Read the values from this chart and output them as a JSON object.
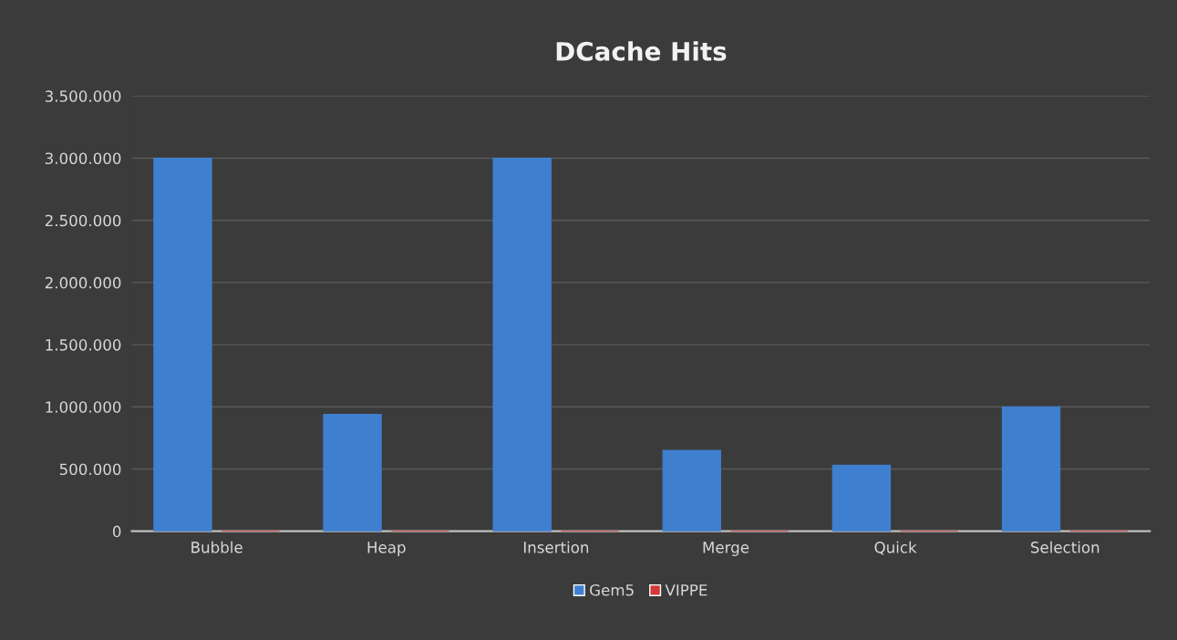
{
  "chart_data": {
    "type": "bar",
    "title": "DCache Hits",
    "categories": [
      "Bubble",
      "Heap",
      "Insertion",
      "Merge",
      "Quick",
      "Selection"
    ],
    "series": [
      {
        "name": "Gem5",
        "color": "#3f7fcf",
        "values": [
          3000000,
          940000,
          3000000,
          650000,
          530000,
          1000000
        ]
      },
      {
        "name": "VIPPE",
        "color": "#d03a3a",
        "values": [
          0,
          0,
          0,
          0,
          0,
          0
        ]
      }
    ],
    "ylim": [
      0,
      3500000
    ],
    "yticks": [
      0,
      {
        "value": 500000,
        "label": "500.000"
      },
      {
        "value": 1000000,
        "label": "1.000.000"
      },
      {
        "value": 1500000,
        "label": "1.500.000"
      },
      {
        "value": 2000000,
        "label": "2.000.000"
      },
      {
        "value": 2500000,
        "label": "2.500.000"
      },
      {
        "value": 3000000,
        "label": "3.000.000"
      },
      {
        "value": 3500000,
        "label": "3.500.000"
      }
    ],
    "grid": "y",
    "legend": "bottom"
  }
}
